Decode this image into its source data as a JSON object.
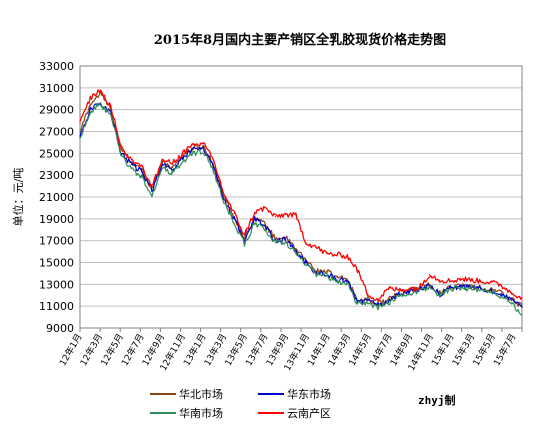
{
  "chart_data": {
    "type": "line",
    "title": "2015年8月国内主要产销区全乳胶现货价格走势图",
    "ylabel": "单位：元/吨",
    "xlabel": "",
    "ylim": [
      9000,
      33000
    ],
    "yticks": [
      9000,
      11000,
      13000,
      15000,
      17000,
      19000,
      21000,
      23000,
      25000,
      27000,
      29000,
      31000,
      33000
    ],
    "x_tick_labels": [
      "12年1月",
      "12年3月",
      "12年5月",
      "12年7月",
      "12年9月",
      "12年11月",
      "13年1月",
      "13年3月",
      "13年5月",
      "13年7月",
      "13年9月",
      "13年11月",
      "14年1月",
      "14年3月",
      "14年5月",
      "14年7月",
      "14年9月",
      "14年11月",
      "15年1月",
      "15年3月",
      "15年5月",
      "15年7月"
    ],
    "x": [
      "12年1月",
      "12年2月",
      "12年3月",
      "12年4月",
      "12年5月",
      "12年6月",
      "12年7月",
      "12年8月",
      "12年9月",
      "12年10月",
      "12年11月",
      "12年12月",
      "13年1月",
      "13年2月",
      "13年3月",
      "13年4月",
      "13年5月",
      "13年6月",
      "13年7月",
      "13年8月",
      "13年9月",
      "13年10月",
      "13年11月",
      "13年12月",
      "14年1月",
      "14年2月",
      "14年3月",
      "14年4月",
      "14年5月",
      "14年6月",
      "14年7月",
      "14年8月",
      "14年9月",
      "14年10月",
      "14年11月",
      "14年12月",
      "15年1月",
      "15年2月",
      "15年3月",
      "15年4月",
      "15年5月",
      "15年6月",
      "15年7月",
      "15年8月"
    ],
    "grid": true,
    "legend_position": "bottom",
    "series": [
      {
        "name": "华北市场",
        "color": "#8B4513",
        "values": [
          27000,
          29500,
          30500,
          29000,
          25500,
          24200,
          23500,
          21800,
          24200,
          23700,
          24800,
          25500,
          25600,
          24000,
          21000,
          19200,
          17200,
          19200,
          18500,
          17200,
          17300,
          16200,
          15200,
          14200,
          14200,
          13600,
          13500,
          11500,
          11600,
          11200,
          11600,
          12200,
          12400,
          12700,
          13000,
          12200,
          12800,
          12900,
          12800,
          12700,
          12500,
          12200,
          11600,
          11000
        ]
      },
      {
        "name": "华东市场",
        "color": "#0000CC",
        "values": [
          26600,
          29000,
          29600,
          28700,
          25000,
          24000,
          23300,
          21600,
          24000,
          23500,
          24600,
          25400,
          25500,
          23800,
          20800,
          19000,
          17000,
          19000,
          18300,
          17000,
          17100,
          16000,
          15000,
          14000,
          14000,
          13400,
          13300,
          11400,
          11500,
          11100,
          11500,
          12100,
          12300,
          12600,
          12900,
          12100,
          12700,
          12800,
          12700,
          12600,
          12400,
          12100,
          11500,
          10900
        ]
      },
      {
        "name": "华南市场",
        "color": "#2E8B57",
        "values": [
          26400,
          28800,
          29400,
          28500,
          24800,
          23600,
          22800,
          21200,
          23600,
          23200,
          24200,
          25000,
          25200,
          23400,
          20400,
          18600,
          16700,
          18600,
          18000,
          16800,
          16900,
          15800,
          14800,
          13800,
          13800,
          13200,
          13100,
          11200,
          11300,
          10900,
          11300,
          11900,
          12100,
          12400,
          12700,
          12000,
          12600,
          12700,
          12600,
          12500,
          12300,
          11900,
          11300,
          10200
        ]
      },
      {
        "name": "云南产区",
        "color": "#FF0000",
        "values": [
          27800,
          30100,
          30800,
          29300,
          25400,
          24400,
          23900,
          21900,
          24400,
          24100,
          25000,
          25800,
          25900,
          24300,
          21300,
          19500,
          17500,
          19600,
          20000,
          19200,
          19400,
          19300,
          16800,
          16400,
          15800,
          15700,
          15600,
          14300,
          12100,
          11600,
          12600,
          12500,
          12600,
          12700,
          13900,
          13400,
          13300,
          13500,
          13400,
          13300,
          13200,
          12900,
          12200,
          11800
        ]
      }
    ],
    "credit": "zhyj制"
  }
}
